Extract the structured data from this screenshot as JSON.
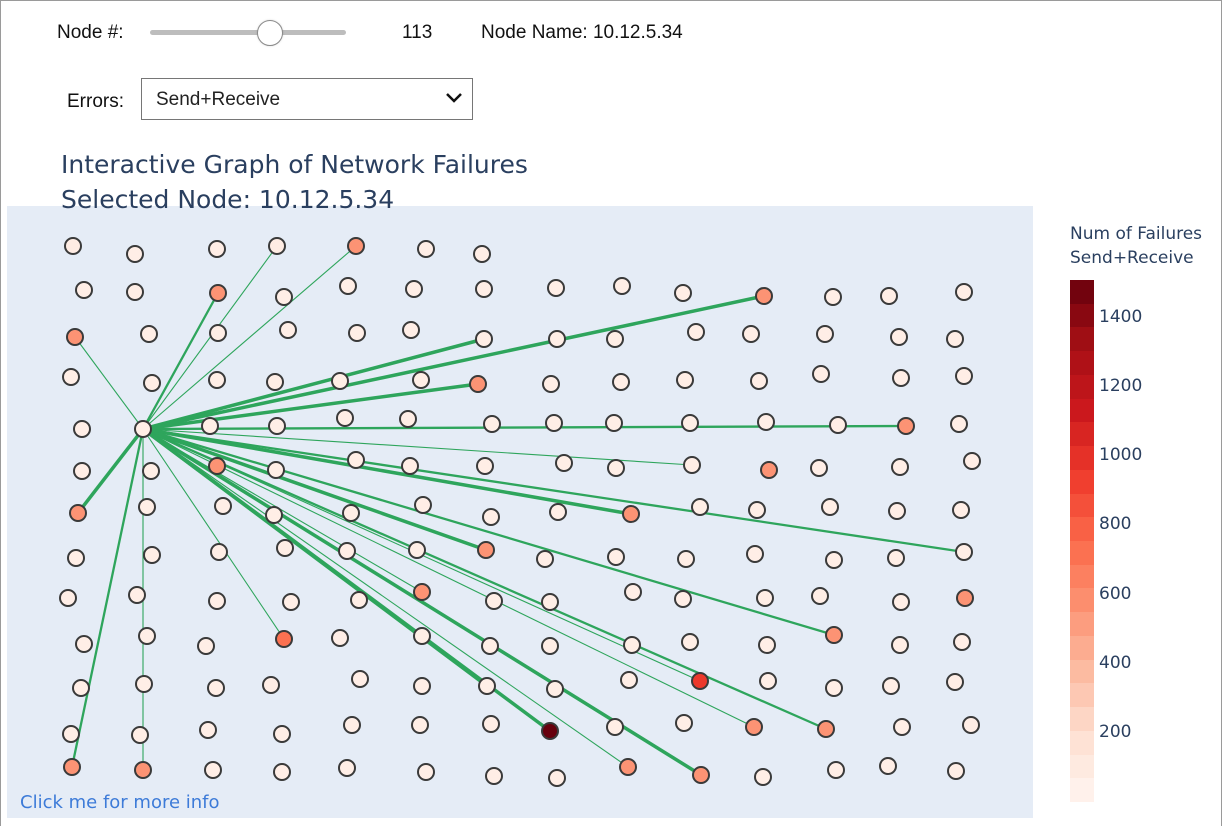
{
  "controls": {
    "node_label": "Node #:",
    "node_value": "113",
    "node_name_label": "Node Name: 10.12.5.34",
    "errors_label": "Errors:",
    "errors_selected": "Send+Receive",
    "slider_fraction": 0.62
  },
  "titles": {
    "line1": "Interactive Graph of Network Failures",
    "line2": "Selected Node: 10.12.5.34"
  },
  "more_info_link": "Click me for more info",
  "colorbar": {
    "title_line1": "Num of Failures",
    "title_line2": "Send+Receive",
    "ticks": [
      "1400",
      "1200",
      "1000",
      "800",
      "600",
      "400",
      "200"
    ],
    "tick_values": [
      1400,
      1200,
      1000,
      800,
      600,
      400,
      200
    ],
    "range": [
      0,
      1510
    ],
    "colors": [
      "#fff5f0",
      "#fee0d2",
      "#fcbba1",
      "#fc9272",
      "#fb6a4a",
      "#ef3b2c",
      "#cb181d",
      "#a50f15",
      "#67000d"
    ]
  },
  "chart_data": {
    "type": "scatter",
    "selected_node": "10.12.5.34",
    "nodes_rows": [
      {
        "ys": [
          246,
          254,
          249,
          246,
          246,
          249,
          254
        ],
        "xs": [
          73,
          135,
          217,
          277,
          356,
          426,
          482
        ],
        "f": [
          80,
          60,
          70,
          80,
          560,
          60,
          60
        ]
      },
      {
        "ys": [
          290,
          292,
          293,
          297,
          286,
          289,
          289,
          288,
          286,
          293,
          296,
          297,
          296,
          292
        ],
        "xs": [
          84,
          135,
          218,
          284,
          348,
          414,
          484,
          556,
          622,
          683,
          764,
          833,
          889,
          964
        ],
        "f": [
          60,
          60,
          560,
          60,
          60,
          60,
          60,
          60,
          60,
          60,
          560,
          60,
          60,
          60
        ]
      },
      {
        "ys": [
          337,
          334,
          333,
          330,
          333,
          330,
          339,
          339,
          339,
          332,
          334,
          334,
          337,
          339
        ],
        "xs": [
          75,
          149,
          218,
          288,
          357,
          411,
          484,
          557,
          615,
          696,
          751,
          825,
          899,
          955
        ],
        "f": [
          560,
          60,
          60,
          60,
          60,
          60,
          60,
          60,
          60,
          60,
          60,
          60,
          60,
          60
        ]
      },
      {
        "ys": [
          377,
          383,
          380,
          382,
          381,
          380,
          384,
          384,
          382,
          380,
          381,
          374,
          378,
          376
        ],
        "xs": [
          71,
          152,
          217,
          275,
          340,
          421,
          478,
          551,
          621,
          685,
          759,
          821,
          901,
          964
        ],
        "f": [
          60,
          60,
          60,
          60,
          60,
          60,
          560,
          60,
          60,
          60,
          60,
          60,
          60,
          60
        ]
      },
      {
        "ys": [
          429,
          429,
          426,
          426,
          418,
          419,
          424,
          423,
          423,
          423,
          422,
          425,
          426,
          424
        ],
        "xs": [
          82,
          143,
          210,
          277,
          345,
          408,
          492,
          554,
          614,
          690,
          766,
          838,
          906,
          959
        ],
        "f": [
          60,
          60,
          60,
          60,
          60,
          60,
          60,
          60,
          60,
          60,
          60,
          60,
          560,
          60
        ]
      },
      {
        "ys": [
          471,
          471,
          466,
          470,
          460,
          466,
          466,
          463,
          468,
          465,
          470,
          468,
          467,
          461
        ],
        "xs": [
          82,
          151,
          217,
          276,
          356,
          410,
          485,
          564,
          616,
          692,
          769,
          819,
          900,
          972
        ],
        "f": [
          60,
          60,
          560,
          60,
          60,
          60,
          60,
          60,
          60,
          60,
          560,
          60,
          60,
          60
        ]
      },
      {
        "ys": [
          513,
          507,
          506,
          515,
          513,
          505,
          517,
          512,
          514,
          507,
          510,
          507,
          511,
          510
        ],
        "xs": [
          78,
          147,
          223,
          274,
          351,
          423,
          491,
          558,
          631,
          700,
          757,
          830,
          897,
          961
        ],
        "f": [
          560,
          60,
          60,
          60,
          60,
          60,
          60,
          60,
          560,
          60,
          60,
          60,
          60,
          60
        ]
      },
      {
        "ys": [
          558,
          555,
          552,
          548,
          551,
          550,
          550,
          559,
          557,
          559,
          554,
          560,
          558,
          552
        ],
        "xs": [
          76,
          152,
          219,
          285,
          347,
          417,
          486,
          545,
          616,
          686,
          755,
          834,
          896,
          964
        ],
        "f": [
          60,
          60,
          60,
          60,
          60,
          60,
          560,
          60,
          60,
          60,
          60,
          60,
          60,
          60
        ]
      },
      {
        "ys": [
          598,
          595,
          601,
          602,
          600,
          592,
          601,
          602,
          592,
          599,
          598,
          596,
          602,
          598
        ],
        "xs": [
          68,
          137,
          217,
          291,
          359,
          422,
          494,
          550,
          633,
          683,
          765,
          820,
          901,
          965
        ],
        "f": [
          60,
          60,
          60,
          60,
          60,
          560,
          60,
          60,
          60,
          60,
          60,
          60,
          60,
          560
        ]
      },
      {
        "ys": [
          644,
          636,
          646,
          639,
          638,
          636,
          646,
          646,
          645,
          642,
          645,
          635,
          645,
          642
        ],
        "xs": [
          84,
          147,
          206,
          284,
          340,
          422,
          490,
          550,
          632,
          690,
          767,
          834,
          900,
          962
        ],
        "f": [
          60,
          60,
          60,
          720,
          60,
          60,
          60,
          60,
          60,
          60,
          60,
          560,
          60,
          60
        ]
      },
      {
        "ys": [
          688,
          684,
          688,
          685,
          679,
          686,
          686,
          689,
          680,
          681,
          681,
          688,
          686,
          682
        ],
        "xs": [
          81,
          144,
          216,
          271,
          360,
          422,
          487,
          555,
          629,
          700,
          768,
          834,
          891,
          955
        ],
        "f": [
          60,
          60,
          60,
          60,
          60,
          60,
          60,
          60,
          60,
          960,
          60,
          60,
          60,
          60
        ]
      },
      {
        "ys": [
          734,
          735,
          730,
          734,
          725,
          725,
          724,
          731,
          727,
          723,
          727,
          729,
          727,
          725
        ],
        "xs": [
          71,
          140,
          208,
          282,
          352,
          420,
          491,
          550,
          615,
          684,
          754,
          826,
          902,
          971
        ],
        "f": [
          60,
          60,
          60,
          60,
          60,
          60,
          60,
          1510,
          60,
          60,
          560,
          560,
          60,
          60
        ]
      },
      {
        "ys": [
          767,
          770,
          770,
          772,
          768,
          772,
          776,
          778,
          767,
          775,
          777,
          770,
          766,
          771
        ],
        "xs": [
          72,
          143,
          213,
          282,
          347,
          426,
          494,
          557,
          628,
          701,
          763,
          836,
          888,
          956
        ],
        "f": [
          560,
          560,
          60,
          60,
          60,
          60,
          60,
          60,
          560,
          560,
          60,
          60,
          60,
          60
        ]
      }
    ],
    "edges": [
      {
        "to": "R0C3",
        "w": 1
      },
      {
        "to": "R0C4",
        "w": 1
      },
      {
        "to": "R1C2",
        "w": 2
      },
      {
        "to": "R2C0",
        "w": 1
      },
      {
        "to": "R2C6",
        "w": 3
      },
      {
        "to": "R1C10",
        "w": 3
      },
      {
        "to": "R3C6",
        "w": 3
      },
      {
        "to": "R4C12",
        "w": 2
      },
      {
        "to": "R5C9",
        "w": 1
      },
      {
        "to": "R6C8",
        "w": 3
      },
      {
        "to": "R6C0",
        "w": 3
      },
      {
        "to": "R7C6",
        "w": 3
      },
      {
        "to": "R7C13",
        "w": 2
      },
      {
        "to": "R9C11",
        "w": 2
      },
      {
        "to": "R9C3",
        "w": 1
      },
      {
        "to": "R10C9",
        "w": 1
      },
      {
        "to": "R11C7",
        "w": 3
      },
      {
        "to": "R11C10",
        "w": 1
      },
      {
        "to": "R11C11",
        "w": 2
      },
      {
        "to": "R12C0",
        "w": 2
      },
      {
        "to": "R12C1",
        "w": 1
      },
      {
        "to": "R12C8",
        "w": 1
      },
      {
        "to": "R12C9",
        "w": 3
      },
      {
        "to": "R8C5",
        "w": 1
      },
      {
        "to": "R10C6",
        "w": 3
      }
    ]
  }
}
